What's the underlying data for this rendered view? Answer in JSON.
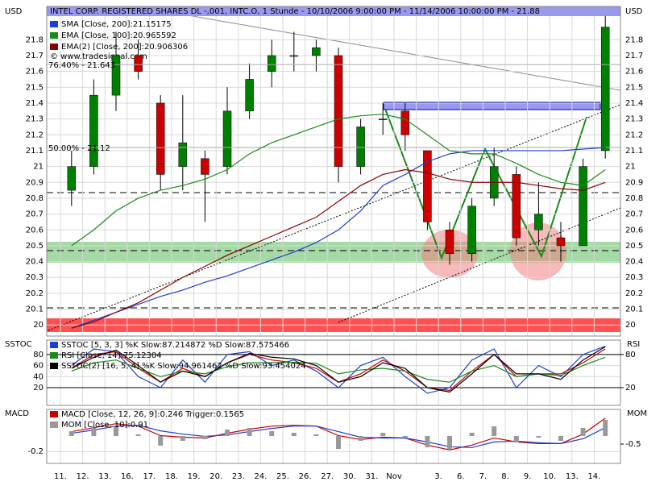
{
  "chart_data": [
    {
      "type": "candlestick",
      "title": "INTEL CORP. REGISTERED SHARES DL -,001, INTC.O, 1 Stunde - 10/10/2006 9:00:00 PM - 11/14/2006 10:00:00 PM - 21.88",
      "unit_left": "USD",
      "unit_right": "USD",
      "categories": [
        "11.",
        "12.",
        "13.",
        "16.",
        "17.",
        "18.",
        "19.",
        "20.",
        "23.",
        "24.",
        "25.",
        "26.",
        "27.",
        "30.",
        "31.",
        "Nov",
        null,
        "3.",
        "6.",
        "7.",
        "8.",
        "9.",
        "10.",
        "13.",
        "14."
      ],
      "open": [
        20.85,
        21.0,
        21.45,
        21.7,
        21.4,
        21.0,
        21.05,
        21.0,
        21.35,
        21.6,
        21.7,
        21.7,
        21.7,
        21.0,
        21.3,
        21.35,
        21.1,
        20.6,
        20.45,
        20.8,
        20.95,
        20.6,
        20.55,
        20.5,
        21.1
      ],
      "high": [
        21.1,
        21.55,
        21.85,
        21.8,
        21.45,
        21.45,
        21.1,
        21.5,
        21.65,
        21.8,
        21.85,
        21.8,
        21.75,
        21.3,
        21.4,
        21.4,
        21.1,
        20.65,
        20.8,
        21.12,
        21.0,
        20.9,
        20.65,
        21.05,
        21.95
      ],
      "low": [
        20.75,
        20.95,
        21.35,
        21.55,
        20.85,
        20.85,
        20.65,
        20.95,
        21.3,
        21.5,
        21.6,
        21.6,
        20.9,
        20.95,
        21.2,
        21.1,
        20.6,
        20.38,
        20.4,
        20.75,
        20.5,
        20.5,
        20.4,
        20.5,
        21.05
      ],
      "close": [
        21.0,
        21.45,
        21.7,
        21.6,
        20.95,
        21.15,
        20.95,
        21.35,
        21.55,
        21.7,
        21.7,
        21.75,
        21.0,
        21.25,
        21.3,
        21.2,
        20.65,
        20.45,
        20.75,
        21.0,
        20.55,
        20.7,
        20.5,
        21.0,
        21.88
      ],
      "up_color": "#008000",
      "down_color": "#cc0000",
      "series": [
        {
          "name": "SMA [Close, 200]:21.15175",
          "color": "#1f3fd0",
          "values": [
            19.98,
            20.03,
            20.08,
            20.13,
            20.18,
            20.22,
            20.27,
            20.31,
            20.36,
            20.41,
            20.46,
            20.52,
            20.6,
            20.72,
            20.88,
            20.95,
            21.03,
            21.08,
            21.1,
            21.1,
            21.1,
            21.1,
            21.1,
            21.11,
            21.12
          ]
        },
        {
          "name": "EMA [Close, 100]:20.965592",
          "color": "#1a8a1a",
          "values": [
            20.5,
            20.6,
            20.72,
            20.8,
            20.85,
            20.88,
            20.92,
            20.98,
            21.08,
            21.15,
            21.2,
            21.25,
            21.3,
            21.32,
            21.33,
            21.3,
            21.2,
            21.1,
            21.08,
            21.08,
            21.02,
            20.95,
            20.9,
            20.88,
            20.98
          ]
        },
        {
          "name": "EMA(2) [Close, 200]:20.906306",
          "color": "#8b0000",
          "values": [
            19.98,
            20.02,
            20.08,
            20.14,
            20.22,
            20.3,
            20.37,
            20.44,
            20.5,
            20.56,
            20.62,
            20.68,
            20.78,
            20.88,
            20.95,
            20.98,
            20.96,
            20.92,
            20.9,
            20.9,
            20.9,
            20.88,
            20.86,
            20.85,
            20.9
          ]
        }
      ],
      "copyright": "© www.tradesignal.com",
      "annotations": [
        {
          "text": "76.40% - 21.643",
          "value": 21.643
        },
        {
          "text": "50.00% - 21.12",
          "value": 21.12
        }
      ],
      "ylim": [
        19.93,
        22.01
      ],
      "yticks": [
        20,
        20.1,
        20.2,
        20.3,
        20.4,
        20.5,
        20.6,
        20.7,
        20.8,
        20.9,
        21,
        21.1,
        21.2,
        21.3,
        21.4,
        21.5,
        21.6,
        21.7,
        21.8
      ],
      "grid": true
    },
    {
      "type": "line",
      "title": "SSTOC",
      "title_right": "RSI",
      "series": [
        {
          "name": "SSTOC [5, 3, 3] %K Slow:87.214872 %D Slow:87.575466",
          "color": "#1f3fd0",
          "values": [
            60,
            90,
            85,
            40,
            20,
            70,
            30,
            80,
            85,
            60,
            70,
            50,
            20,
            60,
            75,
            40,
            10,
            20,
            70,
            90,
            20,
            60,
            40,
            80,
            95
          ]
        },
        {
          "color": "#cc0000",
          "values": [
            55,
            80,
            85,
            55,
            30,
            55,
            40,
            65,
            80,
            70,
            65,
            55,
            30,
            45,
            70,
            50,
            20,
            15,
            50,
            80,
            40,
            45,
            45,
            65,
            90
          ]
        },
        {
          "name": "RSI [Close, 14]:75.12304",
          "color": "#1a8a1a",
          "values": [
            50,
            65,
            70,
            55,
            40,
            50,
            45,
            58,
            65,
            65,
            66,
            64,
            45,
            52,
            55,
            50,
            35,
            30,
            50,
            60,
            40,
            45,
            42,
            60,
            75
          ]
        },
        {
          "name": "SSTOC(2) [16, 5, 4] %K Slow:94.961462 %D Slow:93.454024",
          "color": "#000000",
          "values": [
            55,
            75,
            88,
            60,
            30,
            50,
            40,
            65,
            82,
            75,
            72,
            60,
            30,
            40,
            65,
            55,
            20,
            12,
            45,
            80,
            45,
            45,
            35,
            70,
            94
          ]
        }
      ],
      "ylim": [
        -12,
        106
      ],
      "yticks": [
        20,
        40,
        60,
        80
      ],
      "y2lim": [
        -12,
        106
      ],
      "y2ticks": [
        20,
        80
      ]
    },
    {
      "type": "line",
      "title": "MACD",
      "title_right": "MOM",
      "series": [
        {
          "name": "MACD [Close, 12, 26, 9]:0.246 Trigger:0.1565",
          "color": "#cc0000",
          "values": [
            0.05,
            0.1,
            0.15,
            0.12,
            0.0,
            -0.02,
            -0.03,
            0.03,
            0.08,
            0.12,
            0.13,
            0.12,
            0.0,
            -0.05,
            -0.02,
            -0.03,
            -0.12,
            -0.18,
            -0.12,
            -0.03,
            -0.08,
            -0.1,
            -0.1,
            0.02,
            0.22
          ]
        },
        {
          "color": "#1f3fd0",
          "values": [
            0.03,
            0.07,
            0.12,
            0.13,
            0.06,
            0.02,
            -0.01,
            0.01,
            0.05,
            0.09,
            0.12,
            0.12,
            0.05,
            -0.02,
            -0.03,
            -0.03,
            -0.08,
            -0.14,
            -0.15,
            -0.08,
            -0.07,
            -0.09,
            -0.1,
            -0.04,
            0.1
          ]
        },
        {
          "name": "MOM [Close, 10]:0.91",
          "color": "#999999",
          "axis": "y2",
          "values": [
            0.3,
            0.5,
            0.6,
            0.1,
            -0.6,
            -0.3,
            -0.2,
            0.4,
            0.5,
            0.3,
            0.2,
            0.1,
            -0.8,
            -0.3,
            0.2,
            -0.1,
            -0.7,
            -0.8,
            0.2,
            0.6,
            -0.4,
            -0.1,
            -0.3,
            0.5,
            1.0
          ]
        }
      ],
      "ylim": [
        -0.35,
        0.33
      ],
      "yticks": [
        -0.2
      ],
      "y2lim": [
        -1.7,
        1.65
      ],
      "y2ticks": [
        -0.5
      ]
    }
  ]
}
